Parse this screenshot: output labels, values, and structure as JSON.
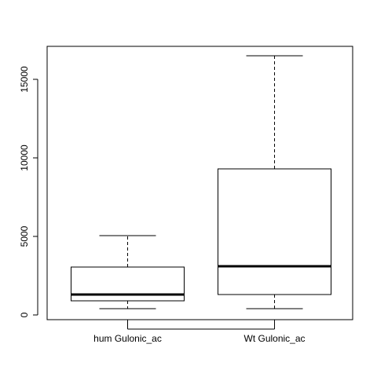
{
  "chart_data": {
    "type": "boxplot",
    "title": "",
    "xlabel": "",
    "ylabel": "",
    "ylim": [
      -300,
      17100
    ],
    "y_ticks": [
      0,
      5000,
      10000,
      15000
    ],
    "y_tick_labels": [
      "0",
      "5000",
      "10000",
      "15000"
    ],
    "grid": false,
    "categories": [
      "hum Gulonic_ac",
      "Wt Gulonic_ac"
    ],
    "boxes": [
      {
        "label": "hum Gulonic_ac",
        "min": 400,
        "q1": 900,
        "median": 1300,
        "q3": 3050,
        "max": 5050
      },
      {
        "label": "Wt Gulonic_ac",
        "min": 400,
        "q1": 1300,
        "median": 3100,
        "q3": 9300,
        "max": 16500
      }
    ],
    "colors": {
      "line": "#000000",
      "box_fill": "#ffffff"
    }
  }
}
